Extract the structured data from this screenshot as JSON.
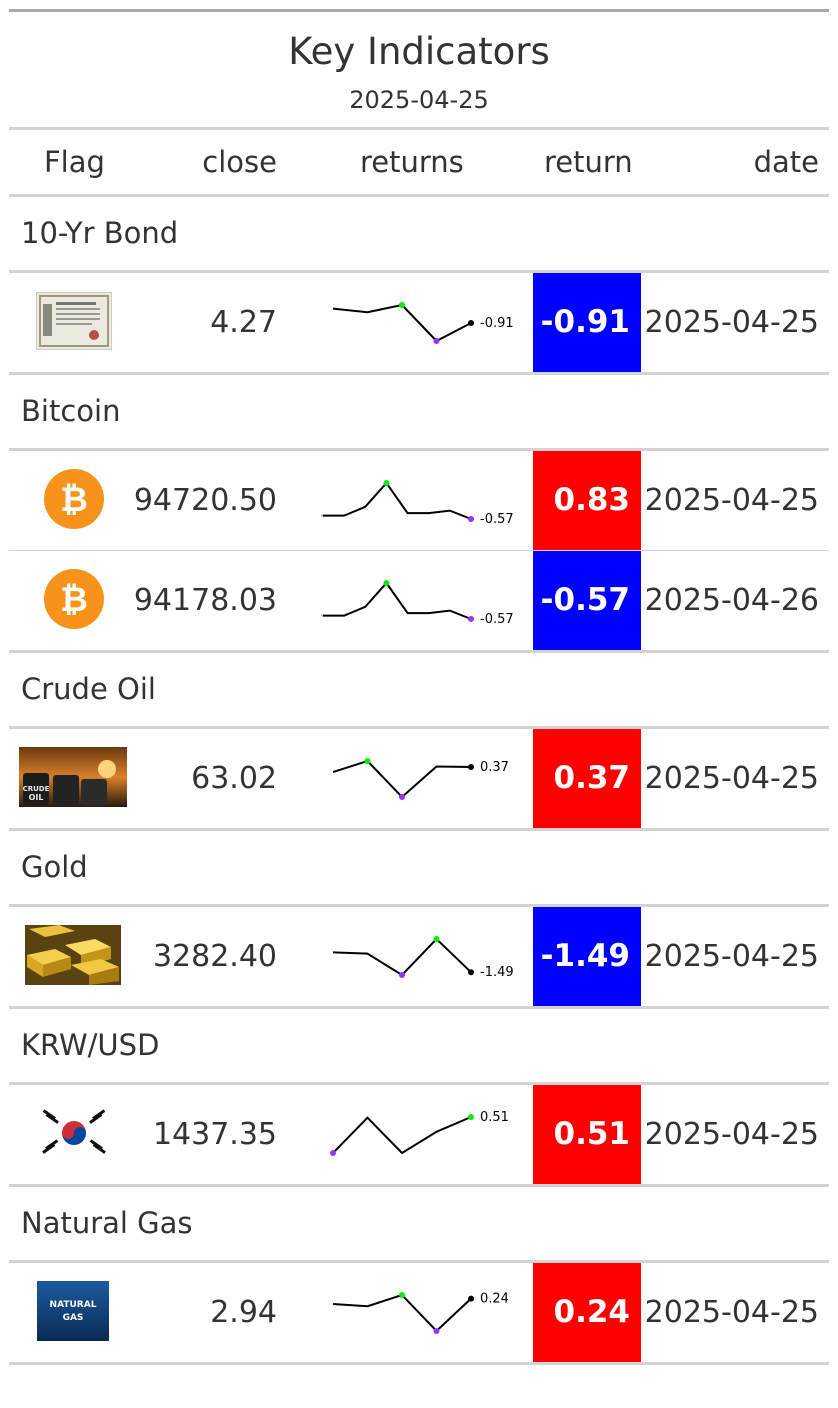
{
  "table": {
    "title": "Key Indicators",
    "subtitle": "2025-04-25",
    "headers": {
      "flag": "Flag",
      "close": "close",
      "returns": "returns",
      "return": "return",
      "date": "date"
    }
  },
  "colors": {
    "positive": "#ff0000",
    "negative": "#0000ff",
    "spark_max": "#00ee00",
    "spark_min": "#9933ff"
  },
  "groups": [
    {
      "name": "10-Yr Bond",
      "rows": [
        {
          "flag": "bond-certificate-icon",
          "close": "4.27",
          "return": "-0.91",
          "date": "2025-04-25",
          "spark": {
            "values": [
              0.0,
              -0.1,
              0.1,
              -0.9,
              -0.4
            ],
            "label": "-0.91"
          }
        }
      ]
    },
    {
      "name": "Bitcoin",
      "rows": [
        {
          "flag": "bitcoin-icon",
          "close": "94720.50",
          "return": "0.83",
          "date": "2025-04-25",
          "spark": {
            "values": [
              -0.3,
              -0.3,
              0.4,
              2.3,
              -0.1,
              -0.1,
              0.1,
              -0.57
            ],
            "label": "-0.57"
          }
        },
        {
          "flag": "bitcoin-icon",
          "close": "94178.03",
          "return": "-0.57",
          "date": "2025-04-26",
          "spark": {
            "values": [
              -0.3,
              -0.3,
              0.4,
              2.3,
              -0.1,
              -0.1,
              0.1,
              -0.57
            ],
            "label": "-0.57"
          }
        }
      ]
    },
    {
      "name": "Crude Oil",
      "rows": [
        {
          "flag": "crude-oil-barrels-icon",
          "close": "63.02",
          "return": "0.37",
          "date": "2025-04-25",
          "spark": {
            "values": [
              0.0,
              0.8,
              -1.8,
              0.4,
              0.37
            ],
            "label": "0.37"
          }
        }
      ]
    },
    {
      "name": "Gold",
      "rows": [
        {
          "flag": "gold-bars-icon",
          "close": "3282.40",
          "return": "-1.49",
          "date": "2025-04-25",
          "spark": {
            "values": [
              0.0,
              -0.1,
              -1.7,
              1.0,
              -1.49
            ],
            "label": "-1.49"
          }
        }
      ]
    },
    {
      "name": "KRW/USD",
      "rows": [
        {
          "flag": "korea-flag-icon",
          "close": "1437.35",
          "return": "0.51",
          "date": "2025-04-25",
          "spark": {
            "values": [
              0.0,
              0.5,
              0.0,
              0.3,
              0.51
            ],
            "label": "0.51"
          }
        }
      ]
    },
    {
      "name": "Natural Gas",
      "rows": [
        {
          "flag": "natural-gas-icon",
          "close": "2.94",
          "return": "0.24",
          "date": "2025-04-25",
          "spark": {
            "values": [
              0.0,
              -0.1,
              0.4,
              -1.2,
              0.24
            ],
            "label": "0.24"
          }
        }
      ]
    }
  ],
  "badges": {
    "natural_gas_text": "NATURAL GAS",
    "crude_oil_text": "CRUDE OIL"
  }
}
